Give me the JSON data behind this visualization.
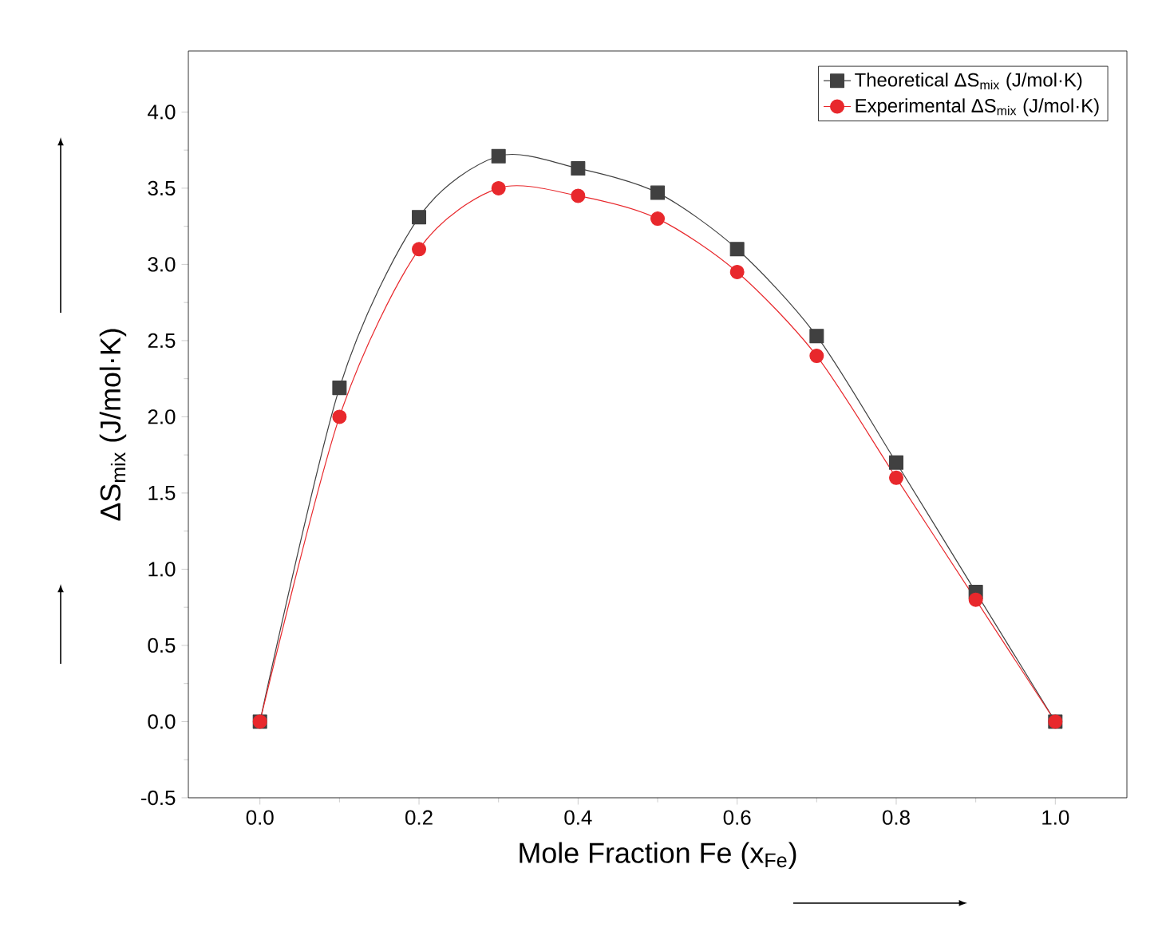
{
  "chart_data": {
    "type": "line",
    "xlabel": "Mole Fraction Fe (x$_{Fe}$)",
    "ylabel": "ΔS$_{mix}$ (J/mol·K)",
    "x": [
      0,
      0.1,
      0.2,
      0.3,
      0.4,
      0.5,
      0.6,
      0.7,
      0.8,
      0.9,
      1.0
    ],
    "series": [
      {
        "name": "Theoretical ΔS$_{mix}$ (J/mol·K)",
        "color": "#404040",
        "marker": "square",
        "values": [
          0,
          2.19,
          3.31,
          3.71,
          3.63,
          3.47,
          3.1,
          2.53,
          1.7,
          0.85,
          0
        ]
      },
      {
        "name": "Experimental ΔS$_{mix}$ (J/mol·K)",
        "color": "#e8282c",
        "marker": "circle",
        "values": [
          0,
          2.0,
          3.1,
          3.5,
          3.45,
          3.3,
          2.95,
          2.4,
          1.6,
          0.8,
          0
        ]
      }
    ],
    "xlim": [
      -0.09,
      1.09
    ],
    "ylim": [
      -0.5,
      4.4
    ],
    "xticks": [
      {
        "value": 0,
        "label": "0.0"
      },
      0.2,
      0.4,
      0.6,
      0.8,
      {
        "value": 1,
        "label": "1.0"
      }
    ],
    "yticks": [
      -0.5,
      {
        "value": 0,
        "label": "0.0"
      },
      0.5,
      {
        "value": 1,
        "label": "1.0"
      },
      1.5,
      {
        "value": 2,
        "label": "2.0"
      },
      2.5,
      {
        "value": 3,
        "label": "3.0"
      },
      3.5,
      {
        "value": 4,
        "label": "4.0"
      }
    ],
    "legend": "top right",
    "grid": false
  }
}
